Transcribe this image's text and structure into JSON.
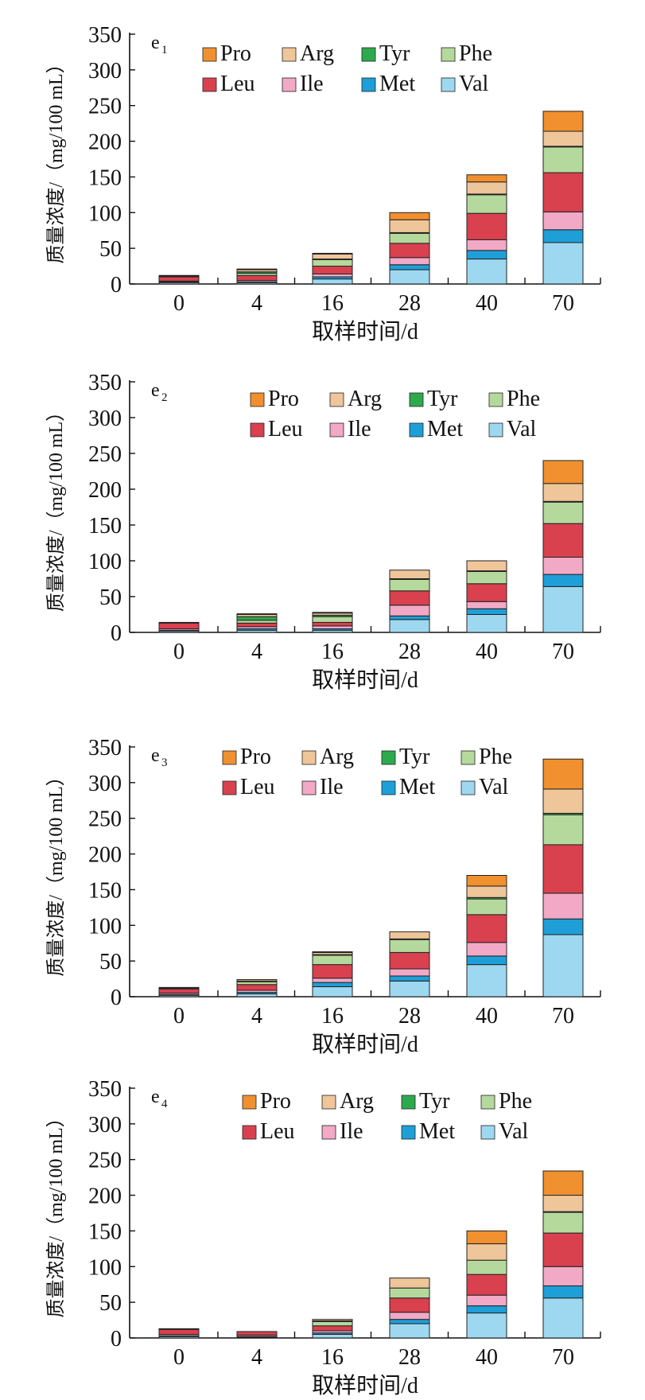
{
  "chart_data": [
    {
      "type": "bar",
      "stacked": true,
      "panel_label": "e",
      "panel_sub": "1",
      "categories": [
        "0",
        "4",
        "16",
        "28",
        "40",
        "70"
      ],
      "xlabel": "取样时间/d",
      "ylabel": "质量浓度/（mg/100 mL）",
      "ylim": [
        0,
        350
      ],
      "yticks": [
        0,
        50,
        100,
        150,
        200,
        250,
        300,
        350
      ],
      "legend_position": "top",
      "series": [
        {
          "name": "Val",
          "color": "#9ED8F0",
          "values": [
            2,
            2,
            7,
            20,
            35,
            58
          ]
        },
        {
          "name": "Met",
          "color": "#1E9FD8",
          "values": [
            1,
            1,
            3,
            7,
            12,
            18
          ]
        },
        {
          "name": "Ile",
          "color": "#F1A9C6",
          "values": [
            1,
            2,
            4,
            10,
            15,
            25
          ]
        },
        {
          "name": "Leu",
          "color": "#D9414F",
          "values": [
            6,
            7,
            11,
            20,
            37,
            55
          ]
        },
        {
          "name": "Phe",
          "color": "#B5D99C",
          "values": [
            1,
            3,
            9,
            14,
            26,
            36
          ]
        },
        {
          "name": "Tyr",
          "color": "#2EAA4E",
          "values": [
            1,
            2,
            1,
            1,
            1,
            1
          ]
        },
        {
          "name": "Arg",
          "color": "#EFC59A",
          "values": [
            0,
            3,
            7,
            18,
            17,
            21
          ]
        },
        {
          "name": "Pro",
          "color": "#F0902E",
          "values": [
            0,
            1,
            1,
            10,
            10,
            28
          ]
        }
      ]
    },
    {
      "type": "bar",
      "stacked": true,
      "panel_label": "e",
      "panel_sub": "2",
      "categories": [
        "0",
        "4",
        "16",
        "28",
        "40",
        "70"
      ],
      "xlabel": "取样时间/d",
      "ylabel": "质量浓度/（mg/100 mL）",
      "ylim": [
        0,
        350
      ],
      "yticks": [
        0,
        50,
        100,
        150,
        200,
        250,
        300,
        350
      ],
      "legend_position": "top",
      "series": [
        {
          "name": "Val",
          "color": "#9ED8F0",
          "values": [
            2,
            3,
            3,
            18,
            25,
            64
          ]
        },
        {
          "name": "Met",
          "color": "#1E9FD8",
          "values": [
            1,
            2,
            2,
            5,
            8,
            17
          ]
        },
        {
          "name": "Ile",
          "color": "#F1A9C6",
          "values": [
            2,
            3,
            4,
            15,
            10,
            24
          ]
        },
        {
          "name": "Leu",
          "color": "#D9414F",
          "values": [
            8,
            5,
            5,
            20,
            25,
            47
          ]
        },
        {
          "name": "Phe",
          "color": "#B5D99C",
          "values": [
            1,
            4,
            8,
            16,
            17,
            30
          ]
        },
        {
          "name": "Tyr",
          "color": "#2EAA4E",
          "values": [
            0,
            5,
            2,
            1,
            1,
            1
          ]
        },
        {
          "name": "Arg",
          "color": "#EFC59A",
          "values": [
            0,
            3,
            3,
            12,
            14,
            25
          ]
        },
        {
          "name": "Pro",
          "color": "#F0902E",
          "values": [
            0,
            1,
            1,
            0,
            0,
            32
          ]
        }
      ]
    },
    {
      "type": "bar",
      "stacked": true,
      "panel_label": "e",
      "panel_sub": "3",
      "categories": [
        "0",
        "4",
        "16",
        "28",
        "40",
        "70"
      ],
      "xlabel": "取样时间/d",
      "ylabel": "质量浓度/（mg/100 mL）",
      "ylim": [
        0,
        350
      ],
      "yticks": [
        0,
        50,
        100,
        150,
        200,
        250,
        300,
        350
      ],
      "legend_position": "top",
      "series": [
        {
          "name": "Val",
          "color": "#9ED8F0",
          "values": [
            2,
            4,
            14,
            22,
            45,
            87
          ]
        },
        {
          "name": "Met",
          "color": "#1E9FD8",
          "values": [
            1,
            2,
            6,
            7,
            12,
            22
          ]
        },
        {
          "name": "Ile",
          "color": "#F1A9C6",
          "values": [
            2,
            3,
            6,
            10,
            19,
            36
          ]
        },
        {
          "name": "Leu",
          "color": "#D9414F",
          "values": [
            6,
            8,
            19,
            23,
            39,
            68
          ]
        },
        {
          "name": "Phe",
          "color": "#B5D99C",
          "values": [
            1,
            4,
            13,
            18,
            22,
            42
          ]
        },
        {
          "name": "Tyr",
          "color": "#2EAA4E",
          "values": [
            1,
            1,
            1,
            1,
            2,
            2
          ]
        },
        {
          "name": "Arg",
          "color": "#EFC59A",
          "values": [
            0,
            2,
            3,
            10,
            16,
            34
          ]
        },
        {
          "name": "Pro",
          "color": "#F0902E",
          "values": [
            0,
            0,
            1,
            0,
            15,
            42
          ]
        }
      ]
    },
    {
      "type": "bar",
      "stacked": true,
      "panel_label": "e",
      "panel_sub": "4",
      "categories": [
        "0",
        "4",
        "16",
        "28",
        "40",
        "70"
      ],
      "xlabel": "取样时间/d",
      "ylabel": "质量浓度/（mg/100 mL）",
      "ylim": [
        0,
        350
      ],
      "yticks": [
        0,
        50,
        100,
        150,
        200,
        250,
        300,
        350
      ],
      "legend_position": "top",
      "series": [
        {
          "name": "Val",
          "color": "#9ED8F0",
          "values": [
            2,
            1,
            5,
            20,
            35,
            56
          ]
        },
        {
          "name": "Met",
          "color": "#1E9FD8",
          "values": [
            1,
            1,
            2,
            6,
            10,
            17
          ]
        },
        {
          "name": "Ile",
          "color": "#F1A9C6",
          "values": [
            2,
            2,
            3,
            10,
            15,
            27
          ]
        },
        {
          "name": "Leu",
          "color": "#D9414F",
          "values": [
            7,
            5,
            7,
            20,
            29,
            47
          ]
        },
        {
          "name": "Phe",
          "color": "#B5D99C",
          "values": [
            1,
            0,
            6,
            14,
            20,
            29
          ]
        },
        {
          "name": "Tyr",
          "color": "#2EAA4E",
          "values": [
            0,
            0,
            1,
            0,
            0,
            1
          ]
        },
        {
          "name": "Arg",
          "color": "#EFC59A",
          "values": [
            0,
            0,
            2,
            14,
            23,
            23
          ]
        },
        {
          "name": "Pro",
          "color": "#F0902E",
          "values": [
            0,
            0,
            0,
            0,
            18,
            34
          ]
        }
      ]
    }
  ],
  "legend_rows": [
    [
      "Pro",
      "Arg",
      "Tyr",
      "Phe"
    ],
    [
      "Leu",
      "Ile",
      "Met",
      "Val"
    ]
  ]
}
